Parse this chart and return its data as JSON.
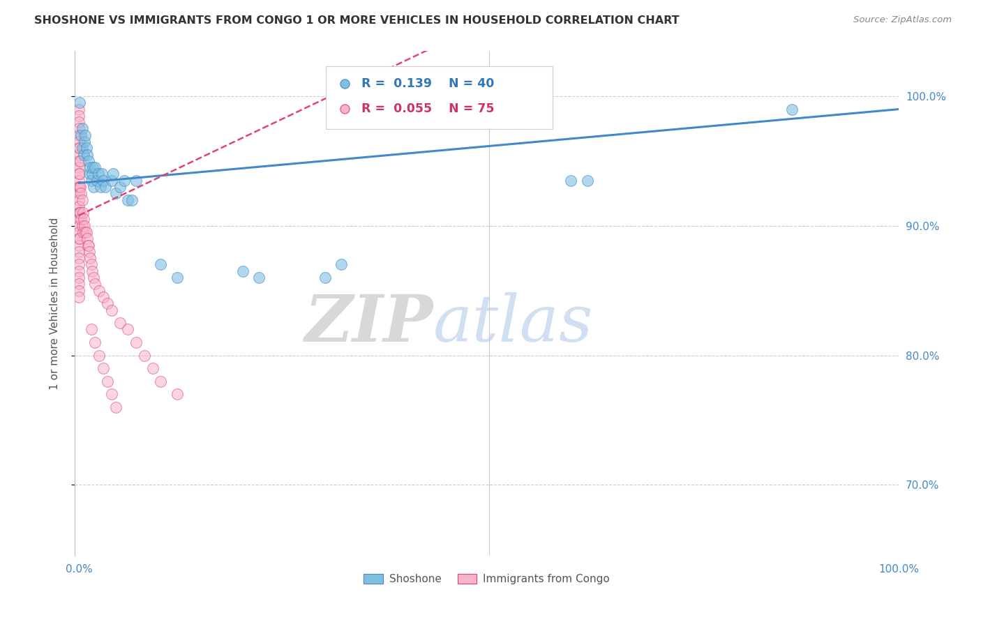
{
  "title": "SHOSHONE VS IMMIGRANTS FROM CONGO 1 OR MORE VEHICLES IN HOUSEHOLD CORRELATION CHART",
  "source": "Source: ZipAtlas.com",
  "ylabel": "1 or more Vehicles in Household",
  "ytick_labels": [
    "70.0%",
    "80.0%",
    "90.0%",
    "100.0%"
  ],
  "ytick_values": [
    0.7,
    0.8,
    0.9,
    1.0
  ],
  "xlim": [
    -0.005,
    1.0
  ],
  "ylim": [
    0.645,
    1.035
  ],
  "legend_blue_r": "R =  0.139",
  "legend_blue_n": "N = 40",
  "legend_pink_r": "R =  0.055",
  "legend_pink_n": "N = 75",
  "legend_label_blue": "Shoshone",
  "legend_label_pink": "Immigrants from Congo",
  "blue_color": "#7fbfdf",
  "pink_color": "#f8b4c8",
  "blue_line_color": "#4488cc",
  "pink_line_color": "#dd4477",
  "watermark_zip": "ZIP",
  "watermark_atlas": "atlas",
  "blue_intercept": 0.933,
  "blue_slope": 0.057,
  "pink_intercept": 0.908,
  "pink_slope": 0.3,
  "shoshone_x": [
    0.001,
    0.003,
    0.004,
    0.004,
    0.006,
    0.007,
    0.008,
    0.009,
    0.01,
    0.012,
    0.013,
    0.014,
    0.015,
    0.016,
    0.017,
    0.018,
    0.02,
    0.022,
    0.024,
    0.026,
    0.028,
    0.03,
    0.032,
    0.04,
    0.042,
    0.045,
    0.05,
    0.055,
    0.06,
    0.065,
    0.07,
    0.1,
    0.12,
    0.2,
    0.22,
    0.3,
    0.32,
    0.6,
    0.62,
    0.87
  ],
  "shoshone_y": [
    0.995,
    0.97,
    0.96,
    0.975,
    0.955,
    0.965,
    0.97,
    0.96,
    0.955,
    0.95,
    0.94,
    0.945,
    0.935,
    0.94,
    0.945,
    0.93,
    0.945,
    0.935,
    0.94,
    0.93,
    0.94,
    0.935,
    0.93,
    0.935,
    0.94,
    0.925,
    0.93,
    0.935,
    0.92,
    0.92,
    0.935,
    0.87,
    0.86,
    0.865,
    0.86,
    0.86,
    0.87,
    0.935,
    0.935,
    0.99
  ],
  "congo_x": [
    0.0,
    0.0,
    0.0,
    0.0,
    0.0,
    0.0,
    0.0,
    0.0,
    0.0,
    0.0,
    0.0,
    0.0,
    0.0,
    0.0,
    0.0,
    0.0,
    0.0,
    0.0,
    0.0,
    0.0,
    0.0,
    0.0,
    0.0,
    0.0,
    0.0,
    0.0,
    0.0,
    0.0,
    0.0,
    0.0,
    0.001,
    0.001,
    0.001,
    0.001,
    0.001,
    0.002,
    0.002,
    0.002,
    0.003,
    0.003,
    0.004,
    0.004,
    0.005,
    0.005,
    0.006,
    0.007,
    0.008,
    0.009,
    0.01,
    0.011,
    0.012,
    0.013,
    0.014,
    0.015,
    0.016,
    0.018,
    0.02,
    0.025,
    0.03,
    0.035,
    0.04,
    0.05,
    0.06,
    0.07,
    0.08,
    0.09,
    0.1,
    0.12,
    0.015,
    0.02,
    0.025,
    0.03,
    0.035,
    0.04,
    0.045
  ],
  "congo_y": [
    0.99,
    0.985,
    0.98,
    0.975,
    0.97,
    0.965,
    0.96,
    0.955,
    0.95,
    0.945,
    0.94,
    0.935,
    0.93,
    0.925,
    0.92,
    0.915,
    0.91,
    0.905,
    0.9,
    0.895,
    0.89,
    0.885,
    0.88,
    0.875,
    0.87,
    0.865,
    0.86,
    0.855,
    0.85,
    0.845,
    0.96,
    0.94,
    0.93,
    0.91,
    0.89,
    0.95,
    0.93,
    0.91,
    0.925,
    0.905,
    0.92,
    0.9,
    0.91,
    0.895,
    0.905,
    0.9,
    0.895,
    0.895,
    0.89,
    0.885,
    0.885,
    0.88,
    0.875,
    0.87,
    0.865,
    0.86,
    0.855,
    0.85,
    0.845,
    0.84,
    0.835,
    0.825,
    0.82,
    0.81,
    0.8,
    0.79,
    0.78,
    0.77,
    0.82,
    0.81,
    0.8,
    0.79,
    0.78,
    0.77,
    0.76
  ]
}
